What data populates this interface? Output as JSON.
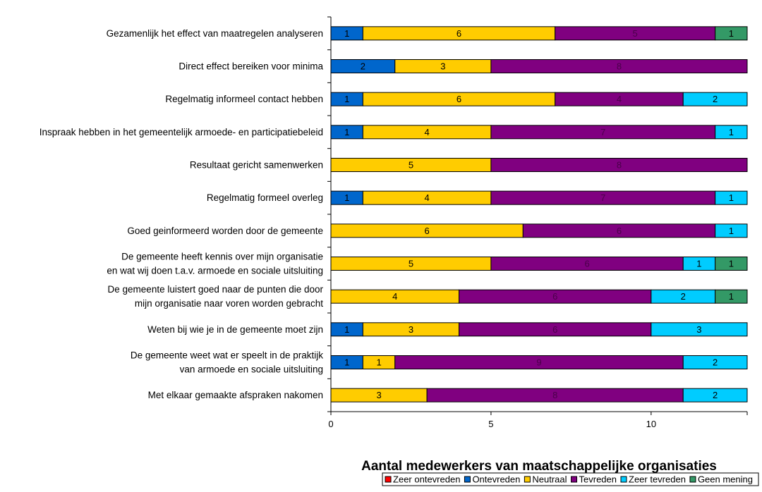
{
  "chart_data": {
    "type": "bar",
    "orientation": "horizontal",
    "stacked": true,
    "title": "",
    "xlabel": "Aantal medewerkers van maatschappelijke organisaties",
    "ylabel": "",
    "xlim": [
      0,
      13
    ],
    "xticks": [
      0,
      5,
      10
    ],
    "grid": false,
    "legend_position": "bottom-right",
    "categories": [
      [
        "Gezamenlijk het effect van maatregelen analyseren"
      ],
      [
        "Direct effect bereiken voor minima"
      ],
      [
        "Regelmatig informeel contact hebben"
      ],
      [
        "Inspraak hebben in het gemeentelijk armoede- en participatiebeleid"
      ],
      [
        "Resultaat gericht samenwerken"
      ],
      [
        "Regelmatig formeel overleg"
      ],
      [
        "Goed geinformeerd worden door de gemeente"
      ],
      [
        "De gemeente heeft kennis over mijn organisatie",
        "en wat wij doen t.a.v. armoede en sociale uitsluiting"
      ],
      [
        "De gemeente luistert goed naar de punten die door",
        "mijn organisatie naar voren worden gebracht"
      ],
      [
        "Weten bij wie je in de gemeente moet zijn"
      ],
      [
        "De gemeente weet wat er speelt in de praktijk",
        "van armoede en sociale uitsluiting"
      ],
      [
        "Met elkaar gemaakte afspraken nakomen"
      ]
    ],
    "series": [
      {
        "name": "Zeer ontevreden",
        "color": "#ff0000",
        "label_color": "#000000",
        "values": [
          0,
          0,
          0,
          0,
          0,
          0,
          0,
          0,
          0,
          0,
          0,
          0
        ]
      },
      {
        "name": "Ontevreden",
        "color": "#0066cc",
        "label_color": "#000000",
        "values": [
          1,
          2,
          1,
          1,
          0,
          1,
          0,
          0,
          0,
          1,
          1,
          0
        ]
      },
      {
        "name": "Neutraal",
        "color": "#ffcc00",
        "label_color": "#000000",
        "values": [
          6,
          3,
          6,
          4,
          5,
          4,
          6,
          5,
          4,
          3,
          1,
          3
        ]
      },
      {
        "name": "Tevreden",
        "color": "#800080",
        "label_color": "#4a004a",
        "values": [
          5,
          8,
          4,
          7,
          8,
          7,
          6,
          6,
          6,
          6,
          9,
          8
        ]
      },
      {
        "name": "Zeer tevreden",
        "color": "#00ccff",
        "label_color": "#000000",
        "values": [
          0,
          0,
          2,
          1,
          0,
          1,
          1,
          1,
          2,
          3,
          2,
          2
        ]
      },
      {
        "name": "Geen mening",
        "color": "#339966",
        "label_color": "#000000",
        "values": [
          1,
          0,
          0,
          0,
          0,
          0,
          0,
          1,
          1,
          0,
          0,
          0
        ]
      }
    ]
  }
}
